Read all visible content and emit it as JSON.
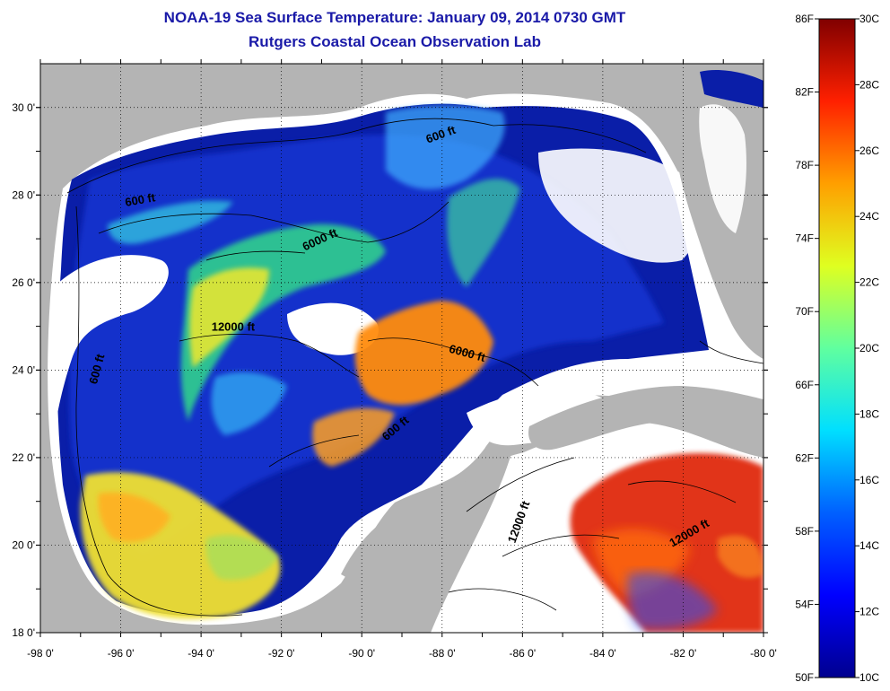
{
  "title": {
    "line1": "NOAA-19 Sea Surface Temperature:  January 09, 2014 0730 GMT",
    "line2": "Rutgers Coastal Ocean Observation Lab"
  },
  "map": {
    "lon_range": [
      -98,
      -80
    ],
    "lat_range": [
      18,
      31
    ],
    "x_ticks": [
      "-98 0'",
      "-96 0'",
      "-94 0'",
      "-92 0'",
      "-90 0'",
      "-88 0'",
      "-86 0'",
      "-84 0'",
      "-82 0'",
      "-80 0'"
    ],
    "y_ticks": [
      "30 0'",
      "28 0'",
      "26 0'",
      "24 0'",
      "22 0'",
      "20 0'",
      "18 0'"
    ],
    "grid": "dotted",
    "colors": {
      "land": "#b4b4b4",
      "cloud": "#ffffff"
    },
    "contour_labels": [
      {
        "text": "600 ft",
        "lon": -95.5,
        "lat": 27.8,
        "rotate": -10
      },
      {
        "text": "6000 ft",
        "lon": -91.0,
        "lat": 26.9,
        "rotate": -25
      },
      {
        "text": "600 ft",
        "lon": -88.0,
        "lat": 29.3,
        "rotate": -20
      },
      {
        "text": "12000 ft",
        "lon": -93.2,
        "lat": 24.9,
        "rotate": 0
      },
      {
        "text": "600 ft",
        "lon": -96.5,
        "lat": 24.0,
        "rotate": -75
      },
      {
        "text": "6000 ft",
        "lon": -87.4,
        "lat": 24.3,
        "rotate": 15
      },
      {
        "text": "600 ft",
        "lon": -89.1,
        "lat": 22.6,
        "rotate": -40
      },
      {
        "text": "12000 ft",
        "lon": -86.0,
        "lat": 20.5,
        "rotate": -70
      },
      {
        "text": "12000 ft",
        "lon": -81.8,
        "lat": 20.2,
        "rotate": -30
      }
    ]
  },
  "colorbar": {
    "fahrenheit_labels": [
      "86F",
      "82F",
      "78F",
      "74F",
      "70F",
      "66F",
      "62F",
      "58F",
      "54F",
      "50F"
    ],
    "celsius_labels": [
      "30C",
      "28C",
      "26C",
      "24C",
      "22C",
      "20C",
      "18C",
      "16C",
      "14C",
      "12C",
      "10C"
    ],
    "range_c": [
      10,
      30
    ],
    "range_f": [
      50,
      86
    ]
  }
}
